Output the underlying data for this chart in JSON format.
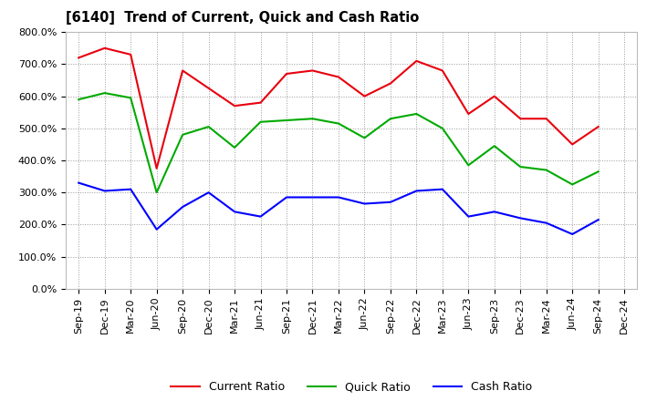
{
  "title": "[6140]  Trend of Current, Quick and Cash Ratio",
  "labels": [
    "Sep-19",
    "Dec-19",
    "Mar-20",
    "Jun-20",
    "Sep-20",
    "Dec-20",
    "Mar-21",
    "Jun-21",
    "Sep-21",
    "Dec-21",
    "Mar-22",
    "Jun-22",
    "Sep-22",
    "Dec-22",
    "Mar-23",
    "Jun-23",
    "Sep-23",
    "Dec-23",
    "Mar-24",
    "Jun-24",
    "Sep-24",
    "Dec-24"
  ],
  "current_ratio": [
    7.2,
    7.5,
    7.3,
    3.75,
    6.8,
    6.25,
    5.7,
    5.8,
    6.7,
    6.8,
    6.6,
    6.0,
    6.4,
    7.1,
    6.8,
    5.45,
    6.0,
    5.3,
    5.3,
    4.5,
    5.05,
    null
  ],
  "quick_ratio": [
    5.9,
    6.1,
    5.95,
    3.0,
    4.8,
    5.05,
    4.4,
    5.2,
    5.25,
    5.3,
    5.15,
    4.7,
    5.3,
    5.45,
    5.0,
    3.85,
    4.45,
    3.8,
    3.7,
    3.25,
    3.65,
    null
  ],
  "cash_ratio": [
    3.3,
    3.05,
    3.1,
    1.85,
    2.55,
    3.0,
    2.4,
    2.25,
    2.85,
    2.85,
    2.85,
    2.65,
    2.7,
    3.05,
    3.1,
    2.25,
    2.4,
    2.2,
    2.05,
    1.7,
    2.15,
    null
  ],
  "current_color": "#e8000d",
  "quick_color": "#00aa00",
  "cash_color": "#0000ff",
  "ylim": [
    0.0,
    8.0
  ],
  "yticks": [
    0.0,
    1.0,
    2.0,
    3.0,
    4.0,
    5.0,
    6.0,
    7.0,
    8.0
  ],
  "ytick_labels": [
    "0.0%",
    "100.0%",
    "200.0%",
    "300.0%",
    "400.0%",
    "500.0%",
    "600.0%",
    "700.0%",
    "800.0%"
  ],
  "background_color": "#ffffff",
  "grid_color": "#999999",
  "legend_labels": [
    "Current Ratio",
    "Quick Ratio",
    "Cash Ratio"
  ]
}
